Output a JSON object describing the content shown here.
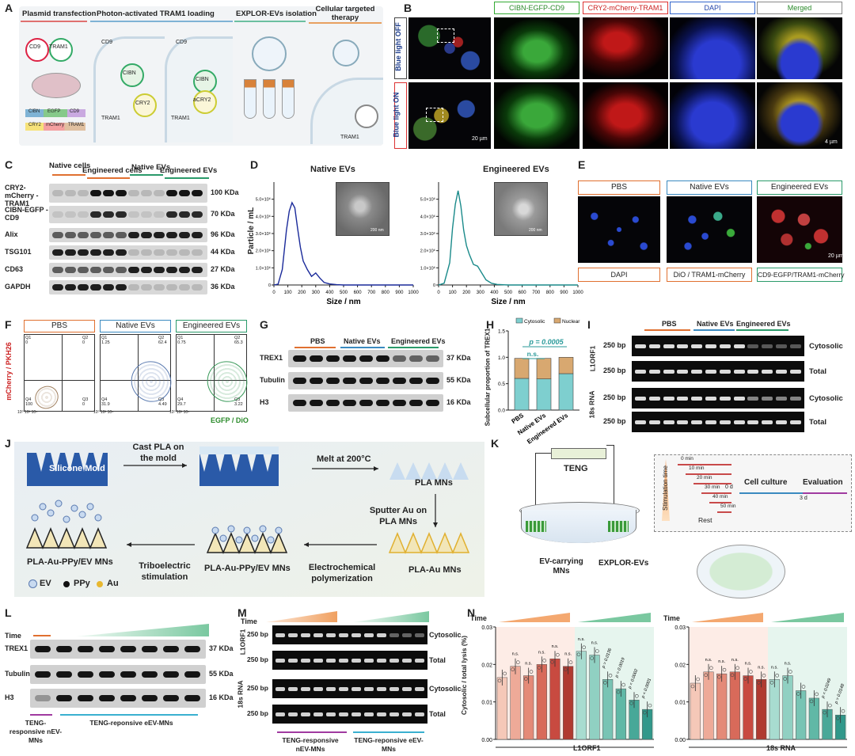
{
  "panels": {
    "a": "A",
    "b": "B",
    "c": "C",
    "d": "D",
    "e": "E",
    "f": "F",
    "g": "G",
    "h": "H",
    "i": "I",
    "j": "J",
    "k": "K",
    "l": "L",
    "m": "M",
    "n": "N"
  },
  "A": {
    "steps": [
      "Plasmid transfection",
      "Photon-activated TRAM1 loading",
      "EXPLOR-EVs isolation",
      "Cellular targeted therapy"
    ],
    "labels": {
      "cd9": "CD9",
      "tram1": "TRAM1",
      "cibn": "CIBN",
      "cry2": "CRY2",
      "acry2": "aCRY2",
      "egfp": "EGFP",
      "mcherry": "mCherry"
    }
  },
  "B": {
    "columns": [
      "CIBN-EGFP-CD9",
      "CRY2-mCherry-TRAM1",
      "DAPI",
      "Merged"
    ],
    "rows": [
      "Blue light OFF",
      "Blue light ON"
    ],
    "scale1": "20 µm",
    "scale2": "4 µm"
  },
  "C": {
    "groups": [
      "Native cells",
      "Engineered cells",
      "Native EVs",
      "Engineered EVs"
    ],
    "rows": [
      {
        "name": "CRY2-mCherry -TRAM1",
        "kda": "100 KDa"
      },
      {
        "name": "CIBN-EGFP -CD9",
        "kda": "70 KDa"
      },
      {
        "name": "Alix",
        "kda": "96 KDa"
      },
      {
        "name": "TSG101",
        "kda": "44 KDa"
      },
      {
        "name": "CD63",
        "kda": "27 KDa"
      },
      {
        "name": "GAPDH",
        "kda": "36 KDa"
      }
    ]
  },
  "D": {
    "title1": "Native EVs",
    "title2": "Engineered EVs",
    "ylabel": "Particle / mL",
    "xlabel": "Size / nm",
    "yticks": [
      "0",
      "1.0×10⁶",
      "2.0×10⁶",
      "3.0×10⁶",
      "4.0×10⁶",
      "5.0×10⁶"
    ],
    "xticks": [
      "0",
      "100",
      "200",
      "300",
      "400",
      "500",
      "600",
      "700",
      "800",
      "900",
      "1000"
    ],
    "scale": "200 nm"
  },
  "E": {
    "top": [
      "PBS",
      "Native EVs",
      "Engineered EVs"
    ],
    "bottom": [
      "DAPI",
      "DiO / TRAM1-mCherry",
      "CD9-EGFP/TRAM1-mCherry"
    ],
    "scale": "20 µm"
  },
  "F": {
    "titles": [
      "PBS",
      "Native EVs",
      "Engineered EVs"
    ],
    "ylabel": "mCherry / PKH26",
    "xlabel": "EGFP / DiO",
    "quads": [
      {
        "q1": "0",
        "q2": "0",
        "q4": "100",
        "q3": "0"
      },
      {
        "q1": "1.25",
        "q2": "62.4",
        "q4": "31.9",
        "q3": "4.49"
      },
      {
        "q1": "0.75",
        "q2": "65.3",
        "q4": "29.7",
        "q3": "3.22"
      }
    ]
  },
  "G": {
    "groups": [
      "PBS",
      "Native EVs",
      "Engineered EVs"
    ],
    "rows": [
      {
        "name": "TREX1",
        "kda": "37 KDa"
      },
      {
        "name": "Tubulin",
        "kda": "55 KDa"
      },
      {
        "name": "H3",
        "kda": "16 KDa"
      }
    ]
  },
  "H": {
    "legend": [
      "Cytosolic",
      "Nuclear"
    ],
    "ylabel": "Subcellular proportion of TREX1",
    "pvalue": "p = 0.0005",
    "ns": "n.s.",
    "yticks": [
      "0.0",
      "0.5",
      "1.0",
      "1.5"
    ]
  },
  "I": {
    "groups": [
      "PBS",
      "Native EVs",
      "Engineered EVs"
    ],
    "genes": [
      "L1ORF1",
      "18s RNA"
    ],
    "size": "250 bp",
    "fractions": [
      "Cytosolic",
      "Total"
    ]
  },
  "J": {
    "mold": "Silicone Mold",
    "step1": "Cast PLA on the mold",
    "step2": "Melt at 200°C",
    "pla": "PLA MNs",
    "step3": "Sputter Au on PLA MNs",
    "plaau": "PLA-Au MNs",
    "step4": "Electrochemical polymerization",
    "ppy1": "PLA-Au-PPy/EV MNs",
    "step5": "Triboelectric stimulation",
    "ppy2": "PLA-Au-PPy/EV MNs",
    "legend": [
      "EV",
      "PPy",
      "Au"
    ]
  },
  "K": {
    "teng": "TENG",
    "mns": "EV-carrying MNs",
    "evs": "EXPLOR-EVs",
    "stim": "Stimulation time",
    "times": [
      "0 min",
      "10 min",
      "20 min",
      "30 min",
      "40 min",
      "50 min"
    ],
    "rest": "Rest",
    "culture": "Cell culture",
    "evaluation": "Evaluation",
    "d0": "0 d",
    "d3": "3 d"
  },
  "L": {
    "time": "Time",
    "rows": [
      {
        "name": "TREX1",
        "kda": "37 KDa"
      },
      {
        "name": "Tubulin",
        "kda": "55 KDa"
      },
      {
        "name": "H3",
        "kda": "16 KDa"
      }
    ],
    "g1": "TENG-responsive nEV-MNs",
    "g2": "TENG-reponsive eEV-MNs"
  },
  "M": {
    "time": "Time",
    "genes": [
      "L1ORF1",
      "18s RNA"
    ],
    "size": "250 bp",
    "fractions": [
      "Cytosolic",
      "Total"
    ],
    "g1": "TENG-responsive nEV-MNs",
    "g2": "TENG-reponsive eEV-MNs"
  },
  "N": {
    "time": "Time",
    "ylabel": "Cytosolic / total lysis (%)",
    "yticks": [
      "0.00",
      "0.01",
      "0.02",
      "0.03"
    ],
    "ns": "n.s.",
    "left_gene": "L1ORF1",
    "right_gene": "18s RNA",
    "left_p": [
      "p = 0.0136",
      "p = 0.0019",
      "p = 0.0002",
      "p < 0.0001"
    ],
    "right_p": [
      "p = 0.0249",
      "p = 0.0148"
    ]
  },
  "chart_data": [
    {
      "type": "line",
      "title": "Native EVs",
      "xlabel": "Size / nm",
      "ylabel": "Particle / mL",
      "xlim": [
        0,
        1000
      ],
      "ylim": [
        0,
        6000000
      ],
      "x": [
        0,
        30,
        60,
        90,
        110,
        130,
        150,
        170,
        190,
        210,
        240,
        270,
        300,
        330,
        360,
        400,
        450,
        500,
        600,
        700,
        800,
        900,
        1000
      ],
      "values": [
        0,
        50000,
        900000,
        3200000,
        4300000,
        4800000,
        4500000,
        3300000,
        2200000,
        1400000,
        900000,
        500000,
        700000,
        400000,
        150000,
        60000,
        20000,
        0,
        0,
        0,
        0,
        0,
        0
      ]
    },
    {
      "type": "line",
      "title": "Engineered EVs",
      "xlabel": "Size / nm",
      "ylabel": "Particle / mL",
      "xlim": [
        0,
        1000
      ],
      "ylim": [
        0,
        6000000
      ],
      "x": [
        0,
        40,
        80,
        100,
        120,
        140,
        160,
        180,
        200,
        220,
        250,
        280,
        310,
        340,
        380,
        420,
        500,
        600,
        700,
        800,
        900,
        1000
      ],
      "values": [
        0,
        100000,
        1300000,
        3300000,
        4700000,
        5500000,
        4600000,
        3200000,
        2300000,
        1800000,
        1200000,
        1100000,
        700000,
        300000,
        100000,
        30000,
        0,
        0,
        0,
        0,
        0,
        0
      ]
    },
    {
      "type": "bar",
      "title": "",
      "ylabel": "Subcellular proportion of TREX1",
      "categories": [
        "PBS",
        "Native EVs",
        "Engineered EVs"
      ],
      "ylim": [
        0,
        1.5
      ],
      "series": [
        {
          "name": "Cytosolic",
          "values": [
            0.6,
            0.59,
            0.69
          ]
        },
        {
          "name": "Nuclear",
          "values": [
            0.38,
            0.39,
            0.31
          ]
        }
      ]
    },
    {
      "type": "bar",
      "title": "",
      "xlabel": "L1ORF1",
      "ylabel": "Cytosolic / total lysis (%)",
      "ylim": [
        0,
        0.03
      ],
      "categories": [
        "nEV 0",
        "nEV 10",
        "nEV 20",
        "nEV 30",
        "nEV 40",
        "nEV 50",
        "eEV 0",
        "eEV 10",
        "eEV 20",
        "eEV 30",
        "eEV 40",
        "eEV 50"
      ],
      "values": [
        0.0165,
        0.0195,
        0.017,
        0.02,
        0.0215,
        0.0195,
        0.0235,
        0.0225,
        0.016,
        0.0135,
        0.0105,
        0.008
      ]
    },
    {
      "type": "bar",
      "title": "",
      "xlabel": "18s RNA",
      "ylabel": "Cytosolic / total lysis (%)",
      "ylim": [
        0,
        0.03
      ],
      "categories": [
        "nEV 0",
        "nEV 10",
        "nEV 20",
        "nEV 30",
        "nEV 40",
        "nEV 50",
        "eEV 0",
        "eEV 10",
        "eEV 20",
        "eEV 30",
        "eEV 40",
        "eEV 50"
      ],
      "values": [
        0.015,
        0.018,
        0.0175,
        0.018,
        0.017,
        0.016,
        0.016,
        0.017,
        0.013,
        0.011,
        0.008,
        0.0065
      ]
    }
  ]
}
